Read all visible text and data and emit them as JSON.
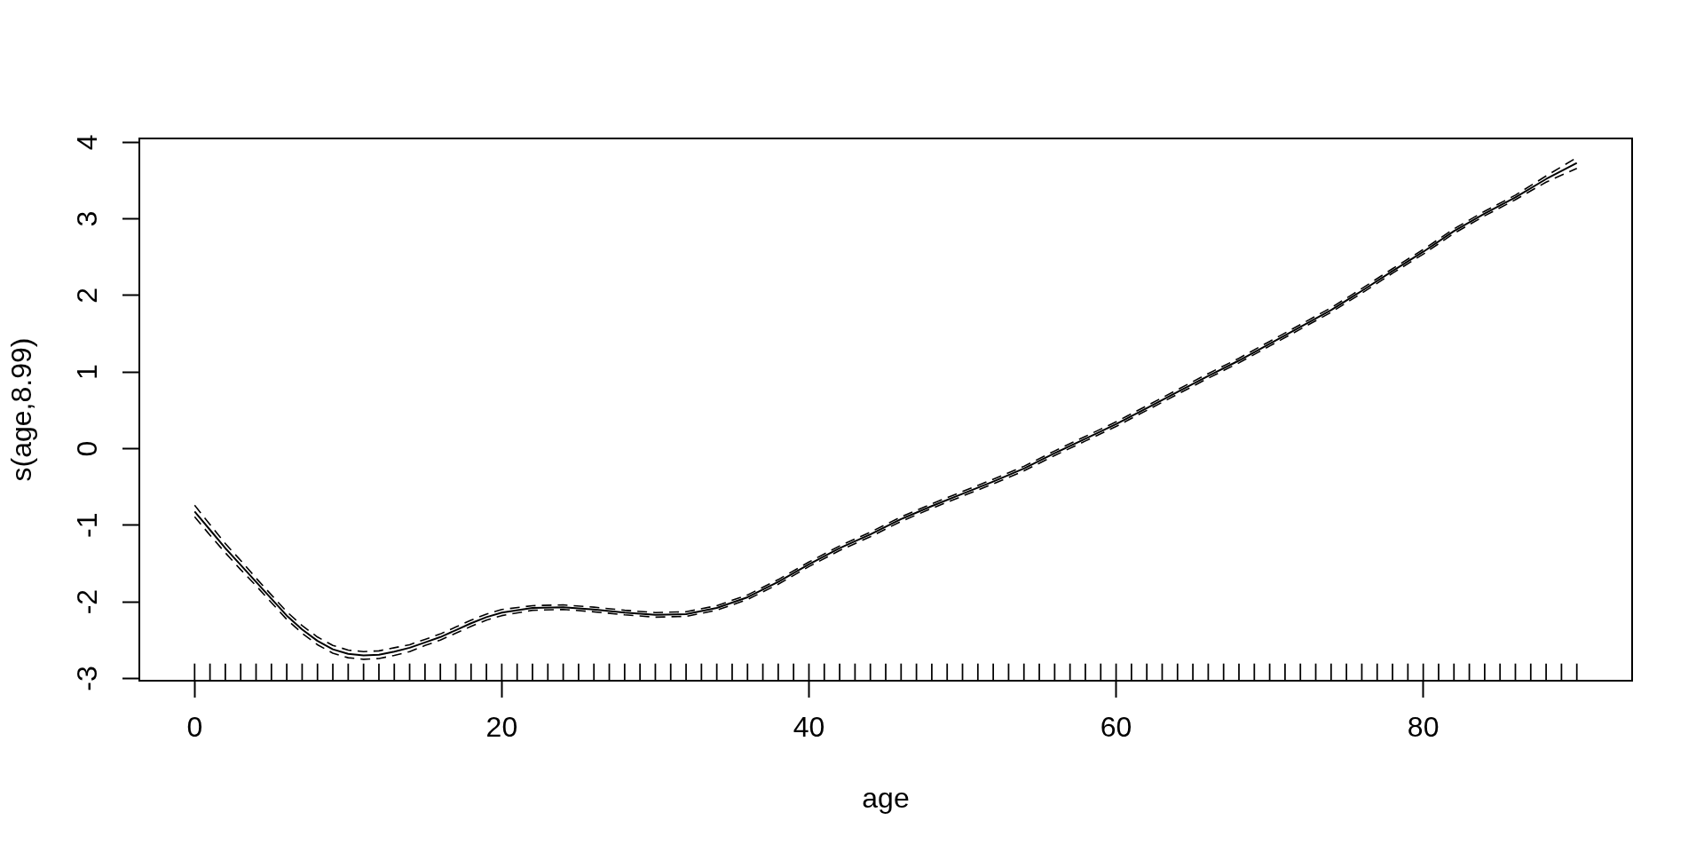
{
  "chart_data": {
    "type": "line",
    "xlabel": "age",
    "ylabel": "s(age,8.99)",
    "marker": "none",
    "xlim": [
      -3.6,
      93.6
    ],
    "xticks": [
      0,
      20,
      40,
      60,
      80
    ],
    "ylim": [
      -3.03,
      4.05
    ],
    "yticks": [
      -3,
      -2,
      -1,
      0,
      1,
      2,
      3,
      4
    ],
    "x": [
      0,
      1,
      2,
      3,
      4,
      5,
      6,
      7,
      8,
      9,
      10,
      11,
      12,
      13,
      14,
      15,
      16,
      17,
      18,
      19,
      20,
      22,
      24,
      26,
      28,
      30,
      32,
      34,
      36,
      38,
      40,
      42,
      44,
      46,
      48,
      50,
      52,
      54,
      56,
      58,
      60,
      62,
      64,
      66,
      68,
      70,
      72,
      74,
      76,
      78,
      80,
      82,
      84,
      86,
      88,
      90
    ],
    "series": [
      {
        "color": "#000000",
        "line_style": "solid",
        "values": [
          -0.82,
          -1.06,
          -1.3,
          -1.52,
          -1.74,
          -1.96,
          -2.18,
          -2.36,
          -2.51,
          -2.62,
          -2.68,
          -2.7,
          -2.69,
          -2.65,
          -2.6,
          -2.53,
          -2.46,
          -2.37,
          -2.28,
          -2.2,
          -2.14,
          -2.08,
          -2.07,
          -2.1,
          -2.14,
          -2.17,
          -2.16,
          -2.08,
          -1.94,
          -1.74,
          -1.51,
          -1.3,
          -1.12,
          -0.92,
          -0.75,
          -0.59,
          -0.43,
          -0.26,
          -0.06,
          0.13,
          0.32,
          0.53,
          0.74,
          0.95,
          1.15,
          1.37,
          1.59,
          1.81,
          2.06,
          2.32,
          2.57,
          2.84,
          3.07,
          3.28,
          3.52,
          3.73
        ]
      },
      {
        "color": "#000000",
        "line_style": "dashed",
        "values": [
          -0.74,
          -0.99,
          -1.24,
          -1.46,
          -1.69,
          -1.91,
          -2.13,
          -2.31,
          -2.46,
          -2.57,
          -2.63,
          -2.65,
          -2.64,
          -2.6,
          -2.56,
          -2.49,
          -2.42,
          -2.33,
          -2.24,
          -2.16,
          -2.1,
          -2.05,
          -2.04,
          -2.07,
          -2.11,
          -2.14,
          -2.13,
          -2.05,
          -1.91,
          -1.71,
          -1.48,
          -1.27,
          -1.09,
          -0.89,
          -0.72,
          -0.56,
          -0.4,
          -0.23,
          -0.03,
          0.16,
          0.35,
          0.56,
          0.77,
          0.98,
          1.18,
          1.4,
          1.62,
          1.84,
          2.09,
          2.35,
          2.6,
          2.87,
          3.1,
          3.31,
          3.56,
          3.8
        ]
      },
      {
        "color": "#000000",
        "line_style": "dashed",
        "values": [
          -0.89,
          -1.13,
          -1.36,
          -1.58,
          -1.79,
          -2.01,
          -2.23,
          -2.41,
          -2.56,
          -2.67,
          -2.73,
          -2.75,
          -2.74,
          -2.7,
          -2.65,
          -2.57,
          -2.5,
          -2.41,
          -2.32,
          -2.24,
          -2.18,
          -2.11,
          -2.1,
          -2.13,
          -2.17,
          -2.2,
          -2.19,
          -2.11,
          -1.97,
          -1.77,
          -1.54,
          -1.33,
          -1.15,
          -0.95,
          -0.78,
          -0.62,
          -0.46,
          -0.29,
          -0.09,
          0.1,
          0.29,
          0.5,
          0.71,
          0.92,
          1.12,
          1.34,
          1.56,
          1.78,
          2.03,
          2.29,
          2.54,
          2.81,
          3.04,
          3.25,
          3.48,
          3.66
        ]
      },
      {
        "type": "bar",
        "color": "#000000",
        "x": [
          0,
          1,
          2,
          3,
          4,
          5,
          6,
          7,
          8,
          9,
          10,
          11,
          12,
          13,
          14,
          15,
          16,
          17,
          18,
          19,
          20,
          21,
          22,
          23,
          24,
          25,
          26,
          27,
          28,
          29,
          30,
          31,
          32,
          33,
          34,
          35,
          36,
          37,
          38,
          39,
          40,
          41,
          42,
          43,
          44,
          45,
          46,
          47,
          48,
          49,
          50,
          51,
          52,
          53,
          54,
          55,
          56,
          57,
          58,
          59,
          60,
          61,
          62,
          63,
          64,
          65,
          66,
          67,
          68,
          69,
          70,
          71,
          72,
          73,
          74,
          75,
          76,
          77,
          78,
          79,
          80,
          81,
          82,
          83,
          84,
          85,
          86,
          87,
          88,
          89,
          90
        ],
        "base": [
          -3.03,
          -3.03,
          -3.03,
          -3.03,
          -3.03,
          -3.03,
          -3.03,
          -3.03,
          -3.03,
          -3.03,
          -3.03,
          -3.03,
          -3.03,
          -3.03,
          -3.03,
          -3.03,
          -3.03,
          -3.03,
          -3.03,
          -3.03,
          -3.03,
          -3.03,
          -3.03,
          -3.03,
          -3.03,
          -3.03,
          -3.03,
          -3.03,
          -3.03,
          -3.03,
          -3.03,
          -3.03,
          -3.03,
          -3.03,
          -3.03,
          -3.03,
          -3.03,
          -3.03,
          -3.03,
          -3.03,
          -3.03,
          -3.03,
          -3.03,
          -3.03,
          -3.03,
          -3.03,
          -3.03,
          -3.03,
          -3.03,
          -3.03,
          -3.03,
          -3.03,
          -3.03,
          -3.03,
          -3.03,
          -3.03,
          -3.03,
          -3.03,
          -3.03,
          -3.03,
          -3.03,
          -3.03,
          -3.03,
          -3.03,
          -3.03,
          -3.03,
          -3.03,
          -3.03,
          -3.03,
          -3.03,
          -3.03,
          -3.03,
          -3.03,
          -3.03,
          -3.03,
          -3.03,
          -3.03,
          -3.03,
          -3.03,
          -3.03,
          -3.03,
          -3.03,
          -3.03,
          -3.03,
          -3.03,
          -3.03,
          -3.03,
          -3.03,
          -3.03,
          -3.03,
          -3.03
        ],
        "values": [
          0.22,
          0.22,
          0.22,
          0.22,
          0.22,
          0.22,
          0.22,
          0.22,
          0.22,
          0.22,
          0.22,
          0.22,
          0.22,
          0.22,
          0.22,
          0.22,
          0.22,
          0.22,
          0.22,
          0.22,
          0.22,
          0.22,
          0.22,
          0.22,
          0.22,
          0.22,
          0.22,
          0.22,
          0.22,
          0.22,
          0.22,
          0.22,
          0.22,
          0.22,
          0.22,
          0.22,
          0.22,
          0.22,
          0.22,
          0.22,
          0.22,
          0.22,
          0.22,
          0.22,
          0.22,
          0.22,
          0.22,
          0.22,
          0.22,
          0.22,
          0.22,
          0.22,
          0.22,
          0.22,
          0.22,
          0.22,
          0.22,
          0.22,
          0.22,
          0.22,
          0.22,
          0.22,
          0.22,
          0.22,
          0.22,
          0.22,
          0.22,
          0.22,
          0.22,
          0.22,
          0.22,
          0.22,
          0.22,
          0.22,
          0.22,
          0.22,
          0.22,
          0.22,
          0.22,
          0.22,
          0.22,
          0.22,
          0.22,
          0.22,
          0.22,
          0.22,
          0.22,
          0.22,
          0.22,
          0.22,
          0.22
        ]
      }
    ]
  }
}
